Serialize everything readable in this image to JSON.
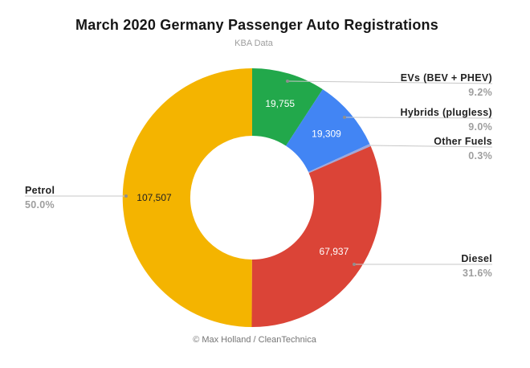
{
  "header": {
    "title": "March 2020 Germany Passenger Auto Registrations",
    "subtitle": "KBA Data"
  },
  "footer": {
    "credit": "© Max Holland / CleanTechnica"
  },
  "chart_data": {
    "type": "pie",
    "variant": "donut",
    "title": "March 2020 Germany Passenger Auto Registrations",
    "subtitle": "KBA Data",
    "legend_position": "labeled-callouts",
    "categories": [
      "EVs (BEV + PHEV)",
      "Hybrids (plugless)",
      "Other Fuels",
      "Diesel",
      "Petrol"
    ],
    "values_percent": [
      9.2,
      9.0,
      0.3,
      31.6,
      50.0
    ],
    "slices": [
      {
        "id": "evs",
        "label": "EVs (BEV + PHEV)",
        "percent": 9.2,
        "pct_label": "9.2%",
        "value": 19755,
        "value_label": "19,755",
        "color": "#22A84B",
        "value_text_color": "#ffffff"
      },
      {
        "id": "hybrids",
        "label": "Hybrids (plugless)",
        "percent": 9.0,
        "pct_label": "9.0%",
        "value": 19309,
        "value_label": "19,309",
        "color": "#4285F4",
        "value_text_color": "#ffffff"
      },
      {
        "id": "other",
        "label": "Other Fuels",
        "percent": 0.3,
        "pct_label": "0.3%",
        "value": null,
        "value_label": "",
        "color": "#9FA8DA",
        "value_text_color": "#ffffff"
      },
      {
        "id": "diesel",
        "label": "Diesel",
        "percent": 31.6,
        "pct_label": "31.6%",
        "value": 67937,
        "value_label": "67,937",
        "color": "#DB4437",
        "value_text_color": "#ffffff"
      },
      {
        "id": "petrol",
        "label": "Petrol",
        "percent": 50.0,
        "pct_label": "50.0%",
        "value": 107507,
        "value_label": "107,507",
        "color": "#F4B400",
        "value_text_color": "#212121"
      }
    ]
  },
  "style": {
    "leader_line_color": "#c7c7c7",
    "leader_dot_color": "#8f8f8f",
    "title_color": "#161616",
    "percent_color": "#9e9e9e"
  }
}
